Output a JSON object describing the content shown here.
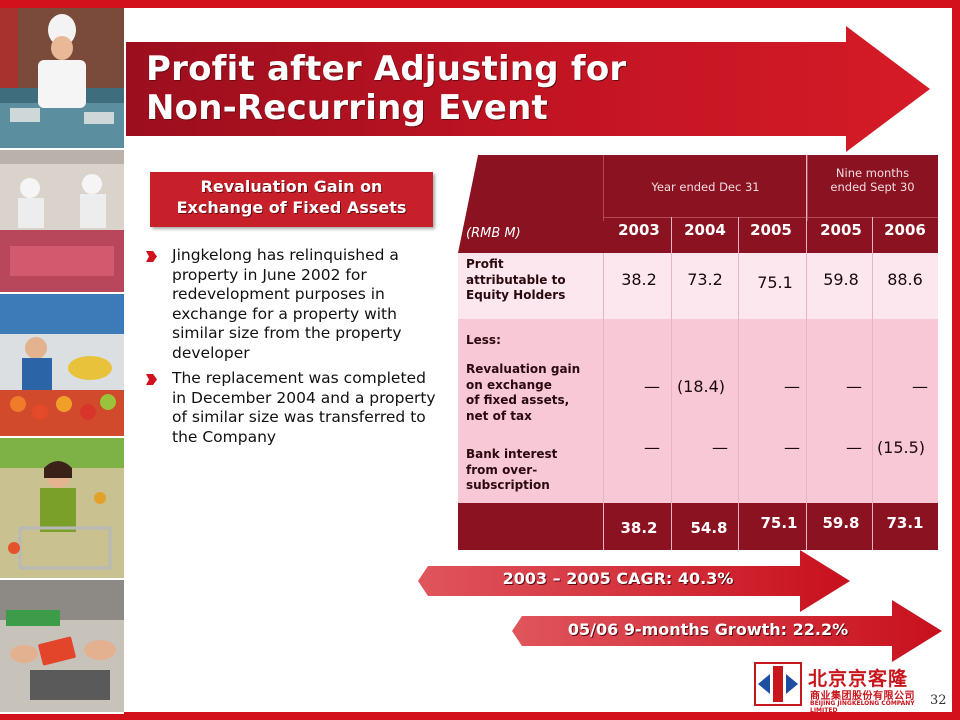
{
  "title": {
    "line1": "Profit after Adjusting for",
    "line2": "Non-Recurring Event"
  },
  "subtitle": {
    "line1": "Revaluation Gain on",
    "line2": "Exchange of Fixed Assets"
  },
  "bullets": [
    "Jingkelong has relinquished a property in June 2002 for redevelopment purposes in exchange for a property with similar size from the property developer",
    "The replacement was completed in December 2004 and a property of similar size was transferred to the Company"
  ],
  "table": {
    "unit_label": "(RMB M)",
    "group1_label": "Year ended Dec 31",
    "group2_label_line1": "Nine months",
    "group2_label_line2": "ended Sept 30",
    "years": [
      "2003",
      "2004",
      "2005",
      "2005",
      "2006"
    ],
    "profit_label_line1": "Profit",
    "profit_label_line2": "attributable to",
    "profit_label_line3": "Equity Holders",
    "profit_values": [
      "38.2",
      "73.2",
      "75.1",
      "59.8",
      "88.6"
    ],
    "less_label": "Less:",
    "reval_label_line1": "Revaluation gain",
    "reval_label_line2": "on exchange",
    "reval_label_line3": "of fixed assets,",
    "reval_label_line4": "net of tax",
    "reval_values": [
      "—",
      "(18.4)",
      "—",
      "—",
      "—"
    ],
    "interest_label_line1": "Bank interest",
    "interest_label_line2": "from over-",
    "interest_label_line3": "subscription",
    "interest_values": [
      "—",
      "—",
      "—",
      "—",
      "(15.5)"
    ],
    "total_values": [
      "38.2",
      "54.8",
      "75.1",
      "59.8",
      "73.1"
    ]
  },
  "growth": {
    "cagr": "2003 – 2005 CAGR: 40.3%",
    "nine_month": "05/06 9-months Growth: 22.2%"
  },
  "logo": {
    "cn_name": "北京京客隆",
    "cn_sub": "商业集团股份有限公司",
    "en_name": "BEIJING JINGKELONG COMPANY LIMITED"
  },
  "page_number": "32",
  "colors": {
    "brand_red": "#d2111c",
    "table_header": "#8b1221",
    "row_light": "#fde7ee",
    "row_pink": "#f9c8d6"
  }
}
